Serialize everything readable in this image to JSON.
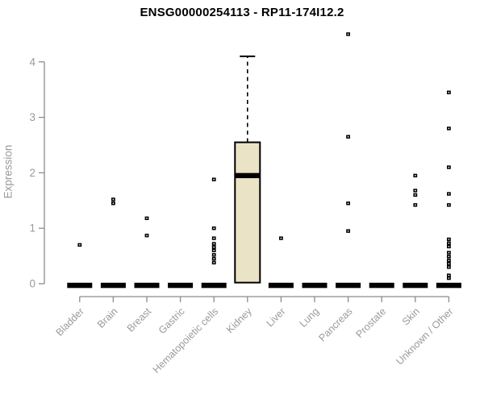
{
  "header": {
    "title": "ENSG00000254113 - RP11-174I12.2"
  },
  "colors": {
    "box_fill": "#ebe3c5",
    "box_border": "#000000",
    "median": "#000000",
    "point": "#000000",
    "axis": "#8c8c8c",
    "tick_label": "#9a9a9a",
    "title": "#000000",
    "background": "#ffffff"
  },
  "chart_data": {
    "type": "boxplot",
    "title": "ENSG00000254113 - RP11-174I12.2",
    "xlabel": "",
    "ylabel": "Expression",
    "ylim": [
      0,
      4
    ],
    "yticks": [
      0,
      1,
      2,
      3,
      4
    ],
    "grid": false,
    "legend": false,
    "x_label_rotation_deg": 45,
    "categories": [
      "Bladder",
      "Brain",
      "Breast",
      "Gastric",
      "Hematopoietic cells",
      "Kidney",
      "Liver",
      "Lung",
      "Pancreas",
      "Prostate",
      "Skin",
      "Unknown / Other"
    ],
    "series": [
      {
        "category": "Bladder",
        "q1": 0,
        "median": 0,
        "q3": 0,
        "whisker_low": 0,
        "whisker_high": 0,
        "outliers": [
          0.7
        ]
      },
      {
        "category": "Brain",
        "q1": 0,
        "median": 0,
        "q3": 0,
        "whisker_low": 0,
        "whisker_high": 0,
        "outliers": [
          1.52,
          1.45
        ]
      },
      {
        "category": "Breast",
        "q1": 0,
        "median": 0,
        "q3": 0,
        "whisker_low": 0,
        "whisker_high": 0,
        "outliers": [
          1.18,
          0.87
        ]
      },
      {
        "category": "Gastric",
        "q1": 0,
        "median": 0,
        "q3": 0,
        "whisker_low": 0,
        "whisker_high": 0,
        "outliers": []
      },
      {
        "category": "Hematopoietic cells",
        "q1": 0,
        "median": 0,
        "q3": 0,
        "whisker_low": 0,
        "whisker_high": 0,
        "outliers": [
          1.88,
          1.0,
          0.82,
          0.72,
          0.66,
          0.6,
          0.52,
          0.45,
          0.38
        ]
      },
      {
        "category": "Kidney",
        "q1": 0.02,
        "median": 1.95,
        "q3": 2.55,
        "whisker_low": 0,
        "whisker_high": 4.1,
        "outliers": []
      },
      {
        "category": "Liver",
        "q1": 0,
        "median": 0,
        "q3": 0,
        "whisker_low": 0,
        "whisker_high": 0,
        "outliers": [
          0.82
        ]
      },
      {
        "category": "Lung",
        "q1": 0,
        "median": 0,
        "q3": 0,
        "whisker_low": 0,
        "whisker_high": 0,
        "outliers": []
      },
      {
        "category": "Pancreas",
        "q1": 0,
        "median": 0,
        "q3": 0,
        "whisker_low": 0,
        "whisker_high": 0,
        "outliers": [
          4.5,
          2.65,
          1.45,
          0.95
        ]
      },
      {
        "category": "Prostate",
        "q1": 0,
        "median": 0,
        "q3": 0,
        "whisker_low": 0,
        "whisker_high": 0,
        "outliers": []
      },
      {
        "category": "Skin",
        "q1": 0,
        "median": 0,
        "q3": 0,
        "whisker_low": 0,
        "whisker_high": 0,
        "outliers": [
          1.95,
          1.68,
          1.6,
          1.42
        ]
      },
      {
        "category": "Unknown / Other",
        "q1": 0,
        "median": 0,
        "q3": 0,
        "whisker_low": 0,
        "whisker_high": 0,
        "outliers": [
          3.45,
          2.8,
          2.1,
          1.62,
          1.42,
          0.8,
          0.73,
          0.67,
          0.56,
          0.49,
          0.42,
          0.36,
          0.3,
          0.15,
          0.1
        ]
      }
    ]
  }
}
